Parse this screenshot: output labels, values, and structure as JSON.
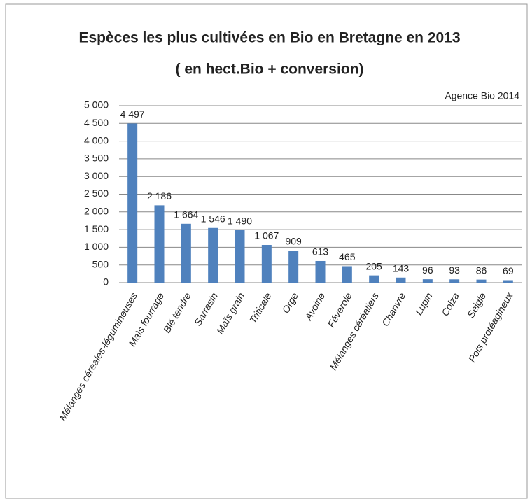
{
  "chart_data": {
    "type": "bar",
    "title": "Espèces les plus cultivées en Bio en Bretagne en 2013",
    "subtitle": "( en hect.Bio + conversion)",
    "annotation": "Agence Bio 2014",
    "categories": [
      "Mélanges céréales-légumineuses",
      "Maïs fourrage",
      "Blé tendre",
      "Sarrasin",
      "Maïs grain",
      "Triticale",
      "Orge",
      "Avoine",
      "Féverole",
      "Mélanges céréaliers",
      "Chanvre",
      "Lupin",
      "Colza",
      "Seigle",
      "Pois protéagineux"
    ],
    "values": [
      4497,
      2186,
      1664,
      1546,
      1490,
      1067,
      909,
      613,
      465,
      205,
      143,
      96,
      93,
      86,
      69
    ],
    "value_labels": [
      "4 497",
      "2 186",
      "1 664",
      "1 546",
      "1 490",
      "1 067",
      "909",
      "613",
      "465",
      "205",
      "143",
      "96",
      "93",
      "86",
      "69"
    ],
    "color": "#4f81bd",
    "ylim": [
      0,
      5000
    ],
    "yticks": [
      0,
      500,
      {
        "value": 1000,
        "label": "1 000"
      },
      {
        "value": 1500,
        "label": "1 500"
      },
      {
        "value": 2000,
        "label": "2 000"
      },
      {
        "value": 2500,
        "label": "2 500"
      },
      {
        "value": 3000,
        "label": "3 000"
      },
      {
        "value": 3500,
        "label": "3 500"
      },
      {
        "value": 4000,
        "label": "4 000"
      },
      {
        "value": 4500,
        "label": "4 500"
      },
      {
        "value": 5000,
        "label": "5 000"
      }
    ],
    "grid": true
  }
}
